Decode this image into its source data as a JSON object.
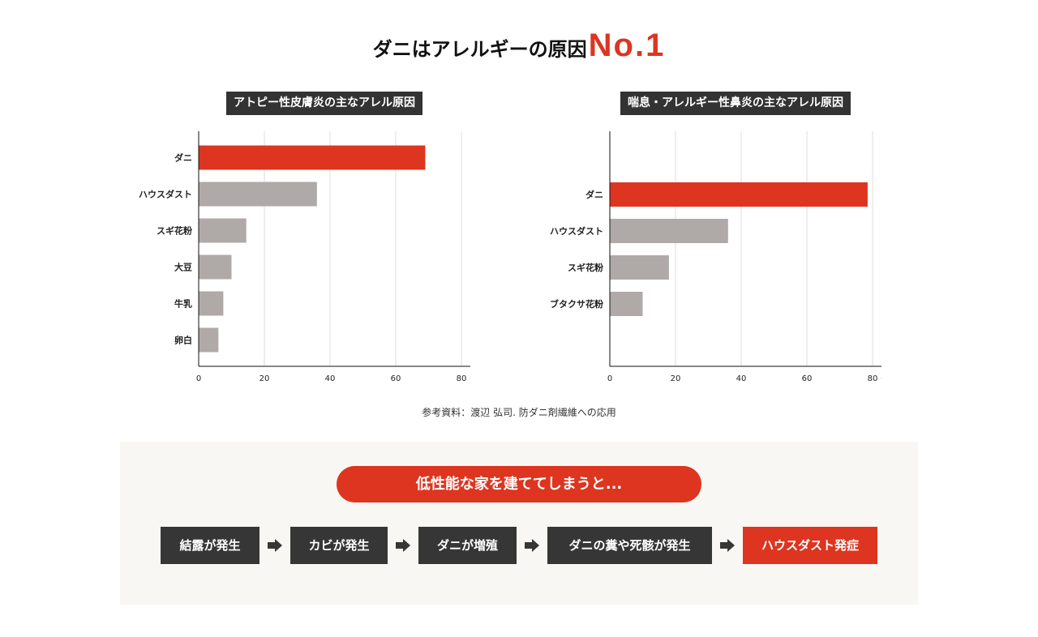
{
  "title": {
    "main": "ダニはアレルギーの原因",
    "highlight": "No.1"
  },
  "colors": {
    "accent": "#dd3520",
    "bar": "#afaaa8",
    "dark": "#363636"
  },
  "chart_data": [
    {
      "type": "bar",
      "orientation": "horizontal",
      "title": "アトピー性皮膚炎の主なアレル原因",
      "categories": [
        "ダニ",
        "ハウスダスト",
        "スギ花粉",
        "大豆",
        "牛乳",
        "卵白"
      ],
      "values": [
        69,
        36,
        14.5,
        10,
        7.5,
        6
      ],
      "highlight": "ダニ",
      "xlim": [
        0,
        80
      ],
      "xticks": [
        "0",
        "20",
        "40",
        "60",
        "80"
      ],
      "unit": "(%)",
      "grid": true
    },
    {
      "type": "bar",
      "orientation": "horizontal",
      "title": "喘息・アレルギー性鼻炎の主なアレル原因",
      "categories": [
        "ダニ",
        "ハウスダスト",
        "スギ花粉",
        "ブタクサ花粉"
      ],
      "values": [
        78.5,
        36,
        18,
        10
      ],
      "highlight": "ダニ",
      "xlim": [
        0,
        80
      ],
      "xticks": [
        "0",
        "20",
        "40",
        "60",
        "80"
      ],
      "unit": "(%)",
      "grid": true
    }
  ],
  "source": "参考資料：渡辺 弘司. 防ダニ剤繊維への応用",
  "flow": {
    "heading": "低性能な家を建ててしまうと...",
    "steps": [
      "結露が発生",
      "カビが発生",
      "ダニが増殖",
      "ダニの糞や死骸が発生",
      "ハウスダスト発症"
    ]
  }
}
